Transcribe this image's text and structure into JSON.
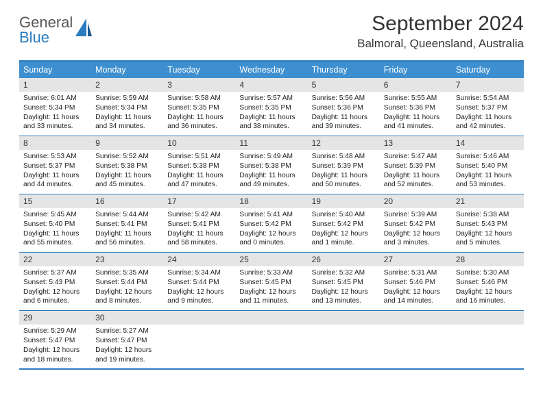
{
  "logo": {
    "line1": "General",
    "line2": "Blue"
  },
  "colors": {
    "accent": "#3d8fcf",
    "border": "#2b7bbf",
    "dayNumBg": "#e5e5e5"
  },
  "title": "September 2024",
  "location": "Balmoral, Queensland, Australia",
  "weekdays": [
    "Sunday",
    "Monday",
    "Tuesday",
    "Wednesday",
    "Thursday",
    "Friday",
    "Saturday"
  ],
  "days": [
    {
      "n": "1",
      "sr": "6:01 AM",
      "ss": "5:34 PM",
      "dl": "11 hours and 33 minutes."
    },
    {
      "n": "2",
      "sr": "5:59 AM",
      "ss": "5:34 PM",
      "dl": "11 hours and 34 minutes."
    },
    {
      "n": "3",
      "sr": "5:58 AM",
      "ss": "5:35 PM",
      "dl": "11 hours and 36 minutes."
    },
    {
      "n": "4",
      "sr": "5:57 AM",
      "ss": "5:35 PM",
      "dl": "11 hours and 38 minutes."
    },
    {
      "n": "5",
      "sr": "5:56 AM",
      "ss": "5:36 PM",
      "dl": "11 hours and 39 minutes."
    },
    {
      "n": "6",
      "sr": "5:55 AM",
      "ss": "5:36 PM",
      "dl": "11 hours and 41 minutes."
    },
    {
      "n": "7",
      "sr": "5:54 AM",
      "ss": "5:37 PM",
      "dl": "11 hours and 42 minutes."
    },
    {
      "n": "8",
      "sr": "5:53 AM",
      "ss": "5:37 PM",
      "dl": "11 hours and 44 minutes."
    },
    {
      "n": "9",
      "sr": "5:52 AM",
      "ss": "5:38 PM",
      "dl": "11 hours and 45 minutes."
    },
    {
      "n": "10",
      "sr": "5:51 AM",
      "ss": "5:38 PM",
      "dl": "11 hours and 47 minutes."
    },
    {
      "n": "11",
      "sr": "5:49 AM",
      "ss": "5:38 PM",
      "dl": "11 hours and 49 minutes."
    },
    {
      "n": "12",
      "sr": "5:48 AM",
      "ss": "5:39 PM",
      "dl": "11 hours and 50 minutes."
    },
    {
      "n": "13",
      "sr": "5:47 AM",
      "ss": "5:39 PM",
      "dl": "11 hours and 52 minutes."
    },
    {
      "n": "14",
      "sr": "5:46 AM",
      "ss": "5:40 PM",
      "dl": "11 hours and 53 minutes."
    },
    {
      "n": "15",
      "sr": "5:45 AM",
      "ss": "5:40 PM",
      "dl": "11 hours and 55 minutes."
    },
    {
      "n": "16",
      "sr": "5:44 AM",
      "ss": "5:41 PM",
      "dl": "11 hours and 56 minutes."
    },
    {
      "n": "17",
      "sr": "5:42 AM",
      "ss": "5:41 PM",
      "dl": "11 hours and 58 minutes."
    },
    {
      "n": "18",
      "sr": "5:41 AM",
      "ss": "5:42 PM",
      "dl": "12 hours and 0 minutes."
    },
    {
      "n": "19",
      "sr": "5:40 AM",
      "ss": "5:42 PM",
      "dl": "12 hours and 1 minute."
    },
    {
      "n": "20",
      "sr": "5:39 AM",
      "ss": "5:42 PM",
      "dl": "12 hours and 3 minutes."
    },
    {
      "n": "21",
      "sr": "5:38 AM",
      "ss": "5:43 PM",
      "dl": "12 hours and 5 minutes."
    },
    {
      "n": "22",
      "sr": "5:37 AM",
      "ss": "5:43 PM",
      "dl": "12 hours and 6 minutes."
    },
    {
      "n": "23",
      "sr": "5:35 AM",
      "ss": "5:44 PM",
      "dl": "12 hours and 8 minutes."
    },
    {
      "n": "24",
      "sr": "5:34 AM",
      "ss": "5:44 PM",
      "dl": "12 hours and 9 minutes."
    },
    {
      "n": "25",
      "sr": "5:33 AM",
      "ss": "5:45 PM",
      "dl": "12 hours and 11 minutes."
    },
    {
      "n": "26",
      "sr": "5:32 AM",
      "ss": "5:45 PM",
      "dl": "12 hours and 13 minutes."
    },
    {
      "n": "27",
      "sr": "5:31 AM",
      "ss": "5:46 PM",
      "dl": "12 hours and 14 minutes."
    },
    {
      "n": "28",
      "sr": "5:30 AM",
      "ss": "5:46 PM",
      "dl": "12 hours and 16 minutes."
    },
    {
      "n": "29",
      "sr": "5:29 AM",
      "ss": "5:47 PM",
      "dl": "12 hours and 18 minutes."
    },
    {
      "n": "30",
      "sr": "5:27 AM",
      "ss": "5:47 PM",
      "dl": "12 hours and 19 minutes."
    }
  ],
  "labels": {
    "sunrise": "Sunrise:",
    "sunset": "Sunset:",
    "daylight": "Daylight:"
  }
}
